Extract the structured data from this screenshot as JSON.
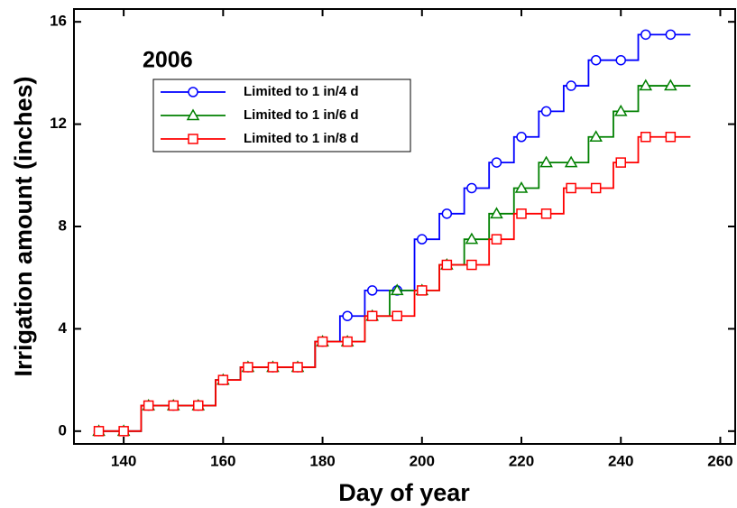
{
  "chart_data": {
    "type": "line",
    "annotation": "2006",
    "xlabel": "Day of year",
    "ylabel": "Irrigation amount (inches)",
    "x": [
      135,
      140,
      145,
      150,
      155,
      160,
      165,
      170,
      175,
      180,
      185,
      190,
      195,
      200,
      205,
      210,
      215,
      220,
      225,
      230,
      235,
      240,
      245,
      250
    ],
    "series": [
      {
        "name": "Limited to 1 in/4 d",
        "color": "#0000ff",
        "marker": "circle",
        "values": [
          0,
          0,
          1,
          1,
          1,
          2,
          2.5,
          2.5,
          2.5,
          3.5,
          4.5,
          5.5,
          5.5,
          7.5,
          8.5,
          9.5,
          10.5,
          11.5,
          12.5,
          13.5,
          14.5,
          14.5,
          15.5,
          15.5
        ]
      },
      {
        "name": "Limited to 1 in/6 d",
        "color": "#008000",
        "marker": "triangle",
        "values": [
          0,
          0,
          1,
          1,
          1,
          2,
          2.5,
          2.5,
          2.5,
          3.5,
          3.5,
          4.5,
          5.5,
          5.5,
          6.5,
          7.5,
          8.5,
          9.5,
          10.5,
          10.5,
          11.5,
          12.5,
          13.5,
          13.5
        ]
      },
      {
        "name": "Limited to 1 in/8 d",
        "color": "#ff0000",
        "marker": "square",
        "values": [
          0,
          0,
          1,
          1,
          1,
          2,
          2.5,
          2.5,
          2.5,
          3.5,
          3.5,
          4.5,
          4.5,
          5.5,
          6.5,
          6.5,
          7.5,
          8.5,
          8.5,
          9.5,
          9.5,
          10.5,
          11.5,
          11.5
        ]
      }
    ],
    "xlim": [
      130,
      263
    ],
    "xticks": [
      140,
      160,
      180,
      200,
      220,
      240,
      260
    ],
    "ylim": [
      -0.5,
      16.5
    ],
    "yticks": [
      0,
      4,
      8,
      12,
      16
    ]
  }
}
